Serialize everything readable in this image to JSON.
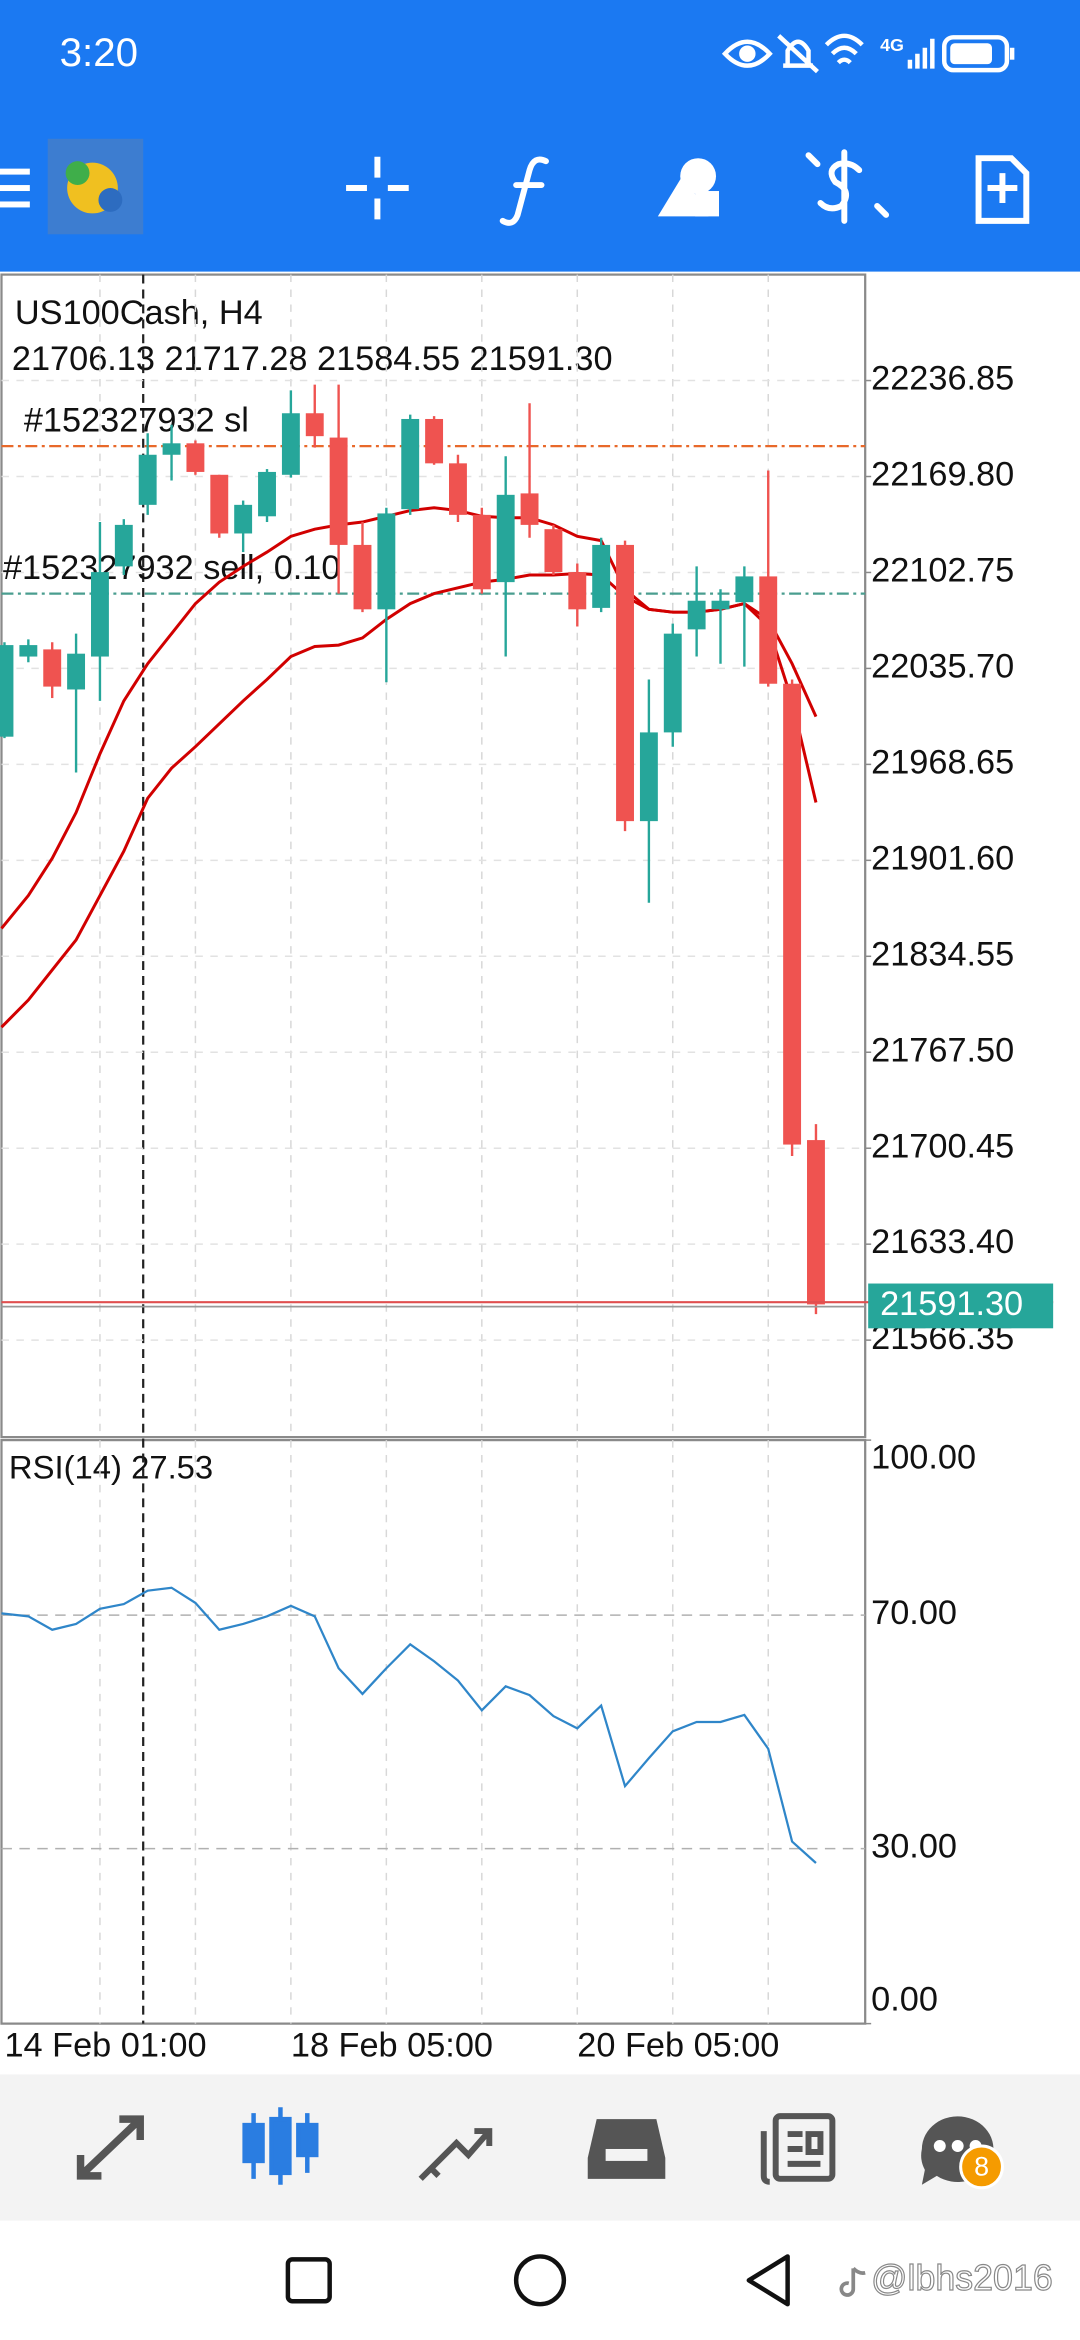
{
  "status_bar": {
    "time": "3:20",
    "network": "4G"
  },
  "chart_data": {
    "type": "candlestick",
    "title": "US100Cash, H4",
    "subtitle": "21706.13 21717.28 21584.55 21591.30",
    "categories": [
      "14 Feb 01:00",
      null,
      null,
      null,
      null,
      null,
      null,
      null,
      null,
      null,
      null,
      null,
      "18 Feb 05:00",
      null,
      null,
      null,
      null,
      null,
      null,
      null,
      null,
      null,
      null,
      null,
      "20 Feb 05:00",
      null,
      null,
      null,
      null,
      null,
      null,
      null,
      null,
      null,
      null
    ],
    "open": [
      21988,
      22044,
      22049,
      22021,
      22044,
      22107,
      22150,
      22185,
      22193,
      22171,
      22130,
      22142,
      22171,
      22214,
      22197,
      22122,
      22077,
      22147,
      22210,
      22179,
      22143,
      22096,
      22158,
      22133,
      22103,
      22078,
      22122,
      21929,
      21991,
      22063,
      22077,
      22082,
      22100,
      22025,
      21706.13
    ],
    "high": [
      22054,
      22056,
      22054,
      22060,
      22138,
      22140,
      22200,
      22206,
      22195,
      22171,
      22153,
      22175,
      22230,
      22234,
      22234,
      22138,
      22148,
      22213,
      22212,
      22185,
      22148,
      22184,
      22221,
      22136,
      22109,
      22127,
      22125,
      22028,
      22067,
      22107,
      22091,
      22107,
      22174,
      22028,
      21717.28
    ],
    "low": [
      21987,
      22040,
      22015,
      21963,
      22013,
      22101,
      22143,
      22167,
      22171,
      22127,
      22117,
      22138,
      22169,
      22190,
      22088,
      22075,
      22026,
      22143,
      22178,
      22138,
      22088,
      22044,
      22127,
      22101,
      22065,
      22075,
      21922,
      21872,
      21981,
      22044,
      22039,
      22037,
      22023,
      21695,
      21584.55
    ],
    "close": [
      22052,
      22052,
      22023,
      22046,
      22103,
      22136,
      22185,
      22193,
      22173,
      22130,
      22150,
      22173,
      22214,
      22198,
      22122,
      22077,
      22144,
      22210,
      22179,
      22143,
      22091,
      22157,
      22136,
      22103,
      22077,
      22122,
      21929,
      21991,
      22060,
      22083,
      22083,
      22100,
      22025,
      21703,
      21591.3
    ],
    "up_color": "#26a69a",
    "down_color": "#ef5350",
    "ylim": [
      21498.57,
      22310.89
    ],
    "yticks": [
      22236.85,
      {
        "value": 22169.8,
        "label": "22169.80"
      },
      22102.75,
      {
        "value": 22035.7,
        "label": "22035.70"
      },
      21968.65,
      {
        "value": 21901.6,
        "label": "21901.60"
      },
      21834.55,
      {
        "value": 21767.5,
        "label": "21767.50"
      },
      21700.45,
      {
        "value": 21633.4,
        "label": "21633.40"
      },
      21566.35
    ],
    "grid": true,
    "overlays": [
      {
        "color": "#d10000",
        "values": [
          21854,
          21877,
          21903,
          21935,
          21976,
          22013,
          22039,
          22060,
          22081,
          22096,
          22107,
          22117,
          22128,
          22133,
          22136,
          22138,
          22142,
          22146,
          22148,
          22146,
          22142,
          22141,
          22141,
          22136,
          22128,
          22125,
          22091,
          22077,
          22075,
          22075,
          22077,
          22081,
          22070,
          22039,
          22002
        ]
      },
      {
        "color": "#d10000",
        "values": [
          21785,
          21804,
          21825,
          21846,
          21877,
          21908,
          21945,
          21966,
          21981,
          21997,
          22013,
          22028,
          22044,
          22051,
          22052,
          22057,
          22070,
          22081,
          22088,
          22092,
          22096,
          22098,
          22101,
          22101,
          22102,
          22101,
          22086,
          22077,
          22075,
          22075,
          22077,
          22081,
          22065,
          22013,
          21942
        ]
      }
    ],
    "orders": [
      {
        "label": "#152327932 sl",
        "value": 22191,
        "color": "#e8692a"
      },
      {
        "label": "#152327932 sell, 0.10",
        "value": 22088,
        "color": "#4a9d8f"
      }
    ],
    "last_price": {
      "value": 21591.3,
      "label": "21591.30",
      "color": "#26a69a"
    },
    "indicator": {
      "title": "RSI(14) 27.53",
      "color": "#2f86c9",
      "ylim": [
        0,
        100
      ],
      "yticks": [
        {
          "value": 100,
          "label": "100.00"
        },
        {
          "value": 70,
          "label": "70.00"
        },
        {
          "value": 30,
          "label": "30.00"
        },
        {
          "value": 0,
          "label": "0.00"
        }
      ],
      "values": [
        70.3,
        69.8,
        67.5,
        68.5,
        71.1,
        71.9,
        74.2,
        74.7,
        72.1,
        67.5,
        68.5,
        69.8,
        71.6,
        69.8,
        60.9,
        56.5,
        60.9,
        65.0,
        62.1,
        58.8,
        53.7,
        57.8,
        56.3,
        52.7,
        50.6,
        54.5,
        40.7,
        45.5,
        50.1,
        51.7,
        51.7,
        52.9,
        47.1,
        31.2,
        27.53
      ]
    }
  },
  "bottom_nav": {
    "badge": "8"
  },
  "watermark": "@lbhs2016"
}
